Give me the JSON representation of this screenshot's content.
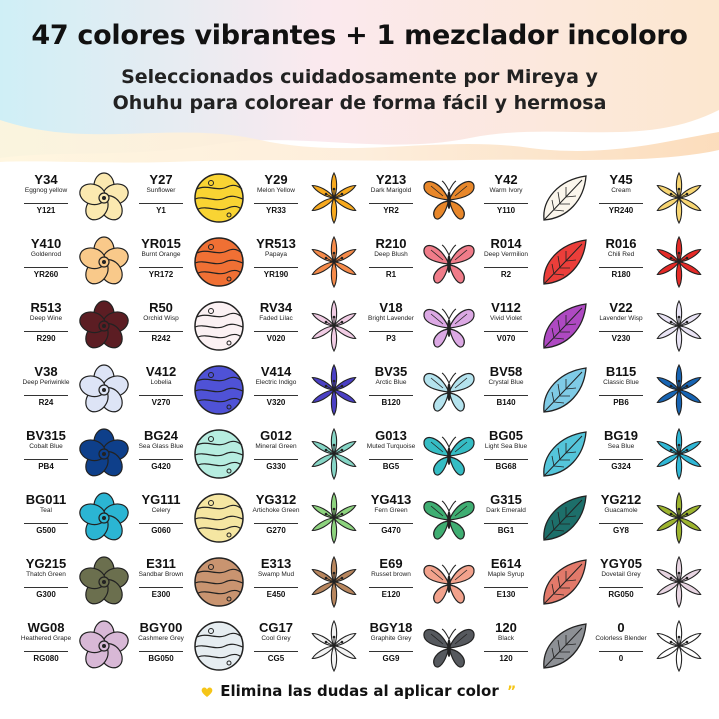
{
  "header": {
    "title": "47 colores vibrantes + 1 mezclador incoloro",
    "subtitle_line1": "Seleccionados cuidadosamente por Mireya y",
    "subtitle_line2": "Ohuhu para colorear de forma fácil y hermosa"
  },
  "columns": [
    "flower",
    "planet",
    "lily",
    "butterfly",
    "leaf",
    "lily"
  ],
  "swatches": [
    [
      {
        "code": "Y34",
        "name": "Eggnog yellow",
        "sub": "Y121",
        "color": "#FBE9B0"
      },
      {
        "code": "Y27",
        "name": "Sunflower",
        "sub": "Y1",
        "color": "#F9D433"
      },
      {
        "code": "Y29",
        "name": "Melon Yellow",
        "sub": "YR33",
        "color": "#F7A91E"
      },
      {
        "code": "Y213",
        "name": "Dark Marigold",
        "sub": "YR2",
        "color": "#E8872A"
      },
      {
        "code": "Y42",
        "name": "Warm Ivory",
        "sub": "Y110",
        "color": "#FBF6EC"
      },
      {
        "code": "Y45",
        "name": "Cream",
        "sub": "YR240",
        "color": "#F8D673"
      }
    ],
    [
      {
        "code": "Y410",
        "name": "Goldenrod",
        "sub": "YR260",
        "color": "#F9C98A"
      },
      {
        "code": "YR015",
        "name": "Burnt Orange",
        "sub": "YR172",
        "color": "#F07034"
      },
      {
        "code": "YR513",
        "name": "Papaya",
        "sub": "YR190",
        "color": "#F68B4A"
      },
      {
        "code": "R210",
        "name": "Deep Blush",
        "sub": "R1",
        "color": "#F07C89"
      },
      {
        "code": "R014",
        "name": "Deep Vermilion",
        "sub": "R2",
        "color": "#EB3E3A"
      },
      {
        "code": "R016",
        "name": "Chili Red",
        "sub": "R180",
        "color": "#E52A27"
      }
    ],
    [
      {
        "code": "R513",
        "name": "Deep Wine",
        "sub": "R290",
        "color": "#5C1D23"
      },
      {
        "code": "R50",
        "name": "Orchid Wisp",
        "sub": "R242",
        "color": "#FBF1F3"
      },
      {
        "code": "RV34",
        "name": "Faded Lilac",
        "sub": "V020",
        "color": "#F1CCE4"
      },
      {
        "code": "V18",
        "name": "Bright Lavender",
        "sub": "P3",
        "color": "#DCA9E4"
      },
      {
        "code": "V112",
        "name": "Vivid Violet",
        "sub": "V070",
        "color": "#AE49C2"
      },
      {
        "code": "V22",
        "name": "Lavender Wisp",
        "sub": "V230",
        "color": "#E9E4F5"
      }
    ],
    [
      {
        "code": "V38",
        "name": "Deep Periwinkle",
        "sub": "R24",
        "color": "#DDE4F6"
      },
      {
        "code": "V412",
        "name": "Lobelia",
        "sub": "V270",
        "color": "#4F52D6"
      },
      {
        "code": "V414",
        "name": "Electric Indigo",
        "sub": "V320",
        "color": "#4A3FC4"
      },
      {
        "code": "BV35",
        "name": "Arctic Blue",
        "sub": "B120",
        "color": "#B4E3EE"
      },
      {
        "code": "BV58",
        "name": "Crystal Blue",
        "sub": "B140",
        "color": "#7FCBE6"
      },
      {
        "code": "B115",
        "name": "Classic Blue",
        "sub": "PB6",
        "color": "#1764B3"
      }
    ],
    [
      {
        "code": "BV315",
        "name": "Cobalt Blue",
        "sub": "PB4",
        "color": "#0E3F8A"
      },
      {
        "code": "BG24",
        "name": "Sea Glass Blue",
        "sub": "G420",
        "color": "#B6EDE0"
      },
      {
        "code": "G012",
        "name": "Mineral Green",
        "sub": "G330",
        "color": "#86D6C6"
      },
      {
        "code": "G013",
        "name": "Muted Turquoise",
        "sub": "BG5",
        "color": "#35BDC4"
      },
      {
        "code": "BG05",
        "name": "Light Sea Blue",
        "sub": "BG68",
        "color": "#54C5DA"
      },
      {
        "code": "BG19",
        "name": "Sea Blue",
        "sub": "G324",
        "color": "#2FB7D6"
      }
    ],
    [
      {
        "code": "BG011",
        "name": "Teal",
        "sub": "G500",
        "color": "#2BB5D3"
      },
      {
        "code": "YG111",
        "name": "Celery",
        "sub": "G060",
        "color": "#F5E6A2"
      },
      {
        "code": "YG312",
        "name": "Artichoke Green",
        "sub": "G270",
        "color": "#8DD37E"
      },
      {
        "code": "YG413",
        "name": "Fern Green",
        "sub": "G470",
        "color": "#3FAE72"
      },
      {
        "code": "G315",
        "name": "Dark Emerald",
        "sub": "BG1",
        "color": "#1D6F6A"
      },
      {
        "code": "YG212",
        "name": "Guacamole",
        "sub": "GY8",
        "color": "#9DB42E"
      }
    ],
    [
      {
        "code": "YG215",
        "name": "Thatch Green",
        "sub": "G300",
        "color": "#6B6F4E"
      },
      {
        "code": "E311",
        "name": "Sandbar Brown",
        "sub": "E300",
        "color": "#C99470"
      },
      {
        "code": "E313",
        "name": "Swamp Mud",
        "sub": "E450",
        "color": "#B8865E"
      },
      {
        "code": "E69",
        "name": "Russet brown",
        "sub": "E120",
        "color": "#F2A28C"
      },
      {
        "code": "E614",
        "name": "Maple Syrup",
        "sub": "E130",
        "color": "#E2796A"
      },
      {
        "code": "YGY05",
        "name": "Dovetail Grey",
        "sub": "RG050",
        "color": "#E8D5E2"
      }
    ],
    [
      {
        "code": "WG08",
        "name": "Heathered Grape",
        "sub": "RG080",
        "color": "#D8B8D6"
      },
      {
        "code": "BGY00",
        "name": "Cashmere Grey",
        "sub": "BG050",
        "color": "#E6EDF1"
      },
      {
        "code": "CG17",
        "name": "Cool Grey",
        "sub": "CG5",
        "color": "#F3F3F3"
      },
      {
        "code": "BGY18",
        "name": "Graphite Grey",
        "sub": "GG9",
        "color": "#56595E"
      },
      {
        "code": "120",
        "name": "Black",
        "sub": "120",
        "color": "#8D9095"
      },
      {
        "code": "0",
        "name": "Colorless Blender",
        "sub": "0",
        "color": "#FFFFFF"
      }
    ]
  ],
  "footer": {
    "text": "Elimina las dudas al aplicar color",
    "heart_color": "#F5C518"
  }
}
